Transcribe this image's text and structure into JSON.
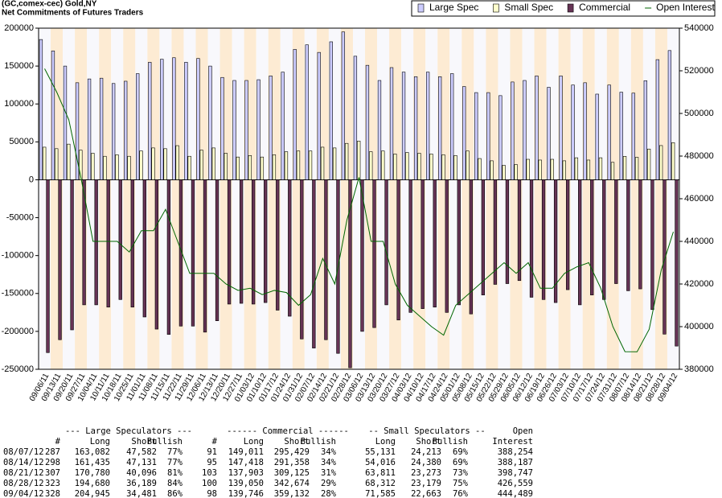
{
  "chart_data": {
    "type": "bar",
    "title": "(GC,comex-cec) Gold,NY",
    "subtitle": "Net Commitments of Futures Traders",
    "categories": [
      "09/06/11",
      "09/13/11",
      "09/20/11",
      "09/27/11",
      "10/04/11",
      "10/11/11",
      "10/18/11",
      "10/25/11",
      "11/01/11",
      "11/08/11",
      "11/15/11",
      "11/22/11",
      "11/29/11",
      "12/06/11",
      "12/13/11",
      "12/20/11",
      "12/27/11",
      "01/03/12",
      "01/10/12",
      "01/17/12",
      "01/24/12",
      "01/31/12",
      "02/07/12",
      "02/14/12",
      "02/21/12",
      "02/28/12",
      "03/06/12",
      "03/13/12",
      "03/20/12",
      "03/27/12",
      "04/03/12",
      "04/10/12",
      "04/17/12",
      "04/24/12",
      "05/01/12",
      "05/08/12",
      "05/15/12",
      "05/22/12",
      "05/29/12",
      "06/05/12",
      "06/12/12",
      "06/19/12",
      "06/26/12",
      "07/03/12",
      "07/10/12",
      "07/17/12",
      "07/24/12",
      "07/31/12",
      "08/07/12",
      "08/14/12",
      "08/21/12",
      "08/28/12",
      "09/04/12"
    ],
    "series": [
      {
        "name": "Large Spec",
        "color": "#ccccff",
        "values": [
          185000,
          170000,
          150000,
          128000,
          133000,
          134000,
          127000,
          130000,
          140000,
          155000,
          159000,
          161000,
          155000,
          160000,
          150000,
          135000,
          131000,
          131000,
          132000,
          137000,
          142000,
          172000,
          178000,
          168000,
          182000,
          195000,
          163000,
          151000,
          131000,
          148000,
          142000,
          136000,
          142000,
          136000,
          140000,
          123000,
          115000,
          115000,
          111000,
          129000,
          131000,
          137000,
          122000,
          137000,
          125000,
          128000,
          113000,
          125000,
          115500,
          114304,
          130684,
          158491,
          170464
        ]
      },
      {
        "name": "Small Spec",
        "color": "#ffffcc",
        "values": [
          43000,
          41000,
          47000,
          39000,
          35000,
          31000,
          33000,
          31000,
          38000,
          42000,
          41000,
          45000,
          31000,
          39000,
          42000,
          35000,
          30000,
          32000,
          30000,
          33000,
          37000,
          38000,
          38000,
          43000,
          42000,
          48000,
          51000,
          37000,
          38000,
          34000,
          36000,
          35000,
          34000,
          33000,
          32000,
          38000,
          28000,
          25000,
          19000,
          20000,
          27000,
          26000,
          27000,
          25000,
          29000,
          26000,
          29000,
          23000,
          30918,
          29636,
          40538,
          45133,
          48922
        ]
      },
      {
        "name": "Commercial",
        "color": "#663355",
        "values": [
          -228000,
          -211000,
          -198000,
          -165000,
          -165000,
          -168000,
          -158000,
          -168000,
          -181000,
          -197000,
          -204000,
          -193000,
          -193000,
          -201000,
          -186000,
          -164000,
          -163000,
          -164000,
          -162000,
          -172000,
          -180000,
          -210000,
          -222000,
          -211000,
          -229000,
          -248000,
          -200000,
          -195000,
          -165000,
          -185000,
          -175000,
          -170000,
          -168000,
          -175000,
          -165000,
          -177000,
          -152000,
          -138000,
          -137000,
          -133000,
          -155000,
          -158000,
          -162000,
          -145000,
          -165000,
          -152000,
          -158000,
          -137000,
          -146418,
          -143940,
          -171222,
          -203624,
          -219386
        ]
      },
      {
        "name": "Open Interest",
        "color": "#006600",
        "type": "line",
        "axis": "y2",
        "values": [
          521000,
          510000,
          497000,
          470000,
          440000,
          440000,
          440000,
          435000,
          445000,
          445000,
          455000,
          440000,
          425000,
          425000,
          425000,
          420000,
          417000,
          418000,
          415000,
          417000,
          416000,
          410000,
          415000,
          432000,
          420000,
          450000,
          470000,
          440000,
          440000,
          420000,
          410000,
          405000,
          400000,
          396000,
          410000,
          415000,
          420000,
          425000,
          430000,
          425000,
          430000,
          418000,
          418000,
          425000,
          428000,
          430000,
          418000,
          400000,
          388254,
          388187,
          398747,
          426559,
          444489
        ]
      }
    ],
    "ylim": [
      -250000,
      200000
    ],
    "yticks": [
      -250000,
      -200000,
      -150000,
      -100000,
      -50000,
      0,
      50000,
      100000,
      150000,
      200000
    ],
    "y2lim": [
      380000,
      540000
    ],
    "y2ticks": [
      380000,
      400000,
      420000,
      440000,
      460000,
      480000,
      500000,
      520000,
      540000
    ],
    "legend": "top-right"
  },
  "table": {
    "groups": [
      "--- Large Speculators ---",
      "------ Commercial ------",
      "-- Small Speculators --",
      "Open"
    ],
    "columns": [
      "#",
      "Long",
      "Short",
      "Bullish",
      "#",
      "Long",
      "Short",
      "Bullish",
      "Long",
      "Short",
      "Bullish",
      "Interest"
    ],
    "rows": [
      [
        "08/07/12",
        "287",
        "163,082",
        "47,582",
        "77%",
        "91",
        "149,011",
        "295,429",
        "34%",
        "55,131",
        "24,213",
        "69%",
        "388,254"
      ],
      [
        "08/14/12",
        "298",
        "161,435",
        "47,131",
        "77%",
        "95",
        "147,418",
        "291,358",
        "34%",
        "54,016",
        "24,380",
        "69%",
        "388,187"
      ],
      [
        "08/21/12",
        "307",
        "170,780",
        "40,096",
        "81%",
        "103",
        "137,903",
        "309,125",
        "31%",
        "63,811",
        "23,273",
        "73%",
        "398,747"
      ],
      [
        "08/28/12",
        "323",
        "194,680",
        "36,189",
        "84%",
        "100",
        "139,050",
        "342,674",
        "29%",
        "68,312",
        "23,179",
        "75%",
        "426,559"
      ],
      [
        "09/04/12",
        "328",
        "204,945",
        "34,481",
        "86%",
        "98",
        "139,746",
        "359,132",
        "28%",
        "71,585",
        "22,663",
        "76%",
        "444,489"
      ]
    ]
  }
}
